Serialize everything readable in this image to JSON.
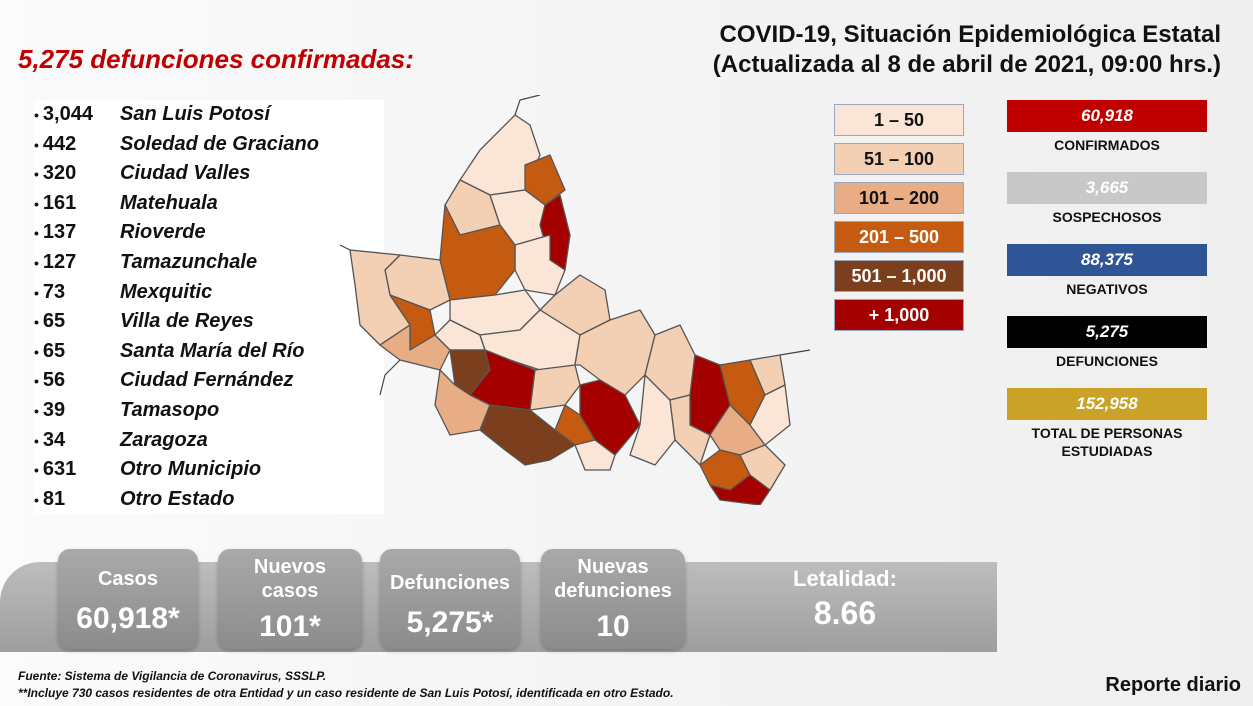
{
  "title": {
    "line1": "COVID-19, Situación Epidemiológica Estatal",
    "line2": "(Actualizada al 8 de abril de 2021, 09:00 hrs.)"
  },
  "deaths_headline": "5,275 defunciones confirmadas:",
  "municipalities": [
    {
      "count": "3,044",
      "name": "San Luis Potosí"
    },
    {
      "count": "442",
      "name": "Soledad de Graciano"
    },
    {
      "count": "320",
      "name": "Ciudad Valles"
    },
    {
      "count": "161",
      "name": "Matehuala"
    },
    {
      "count": "137",
      "name": "Rioverde"
    },
    {
      "count": "127",
      "name": "Tamazunchale"
    },
    {
      "count": "73",
      "name": "Mexquitic"
    },
    {
      "count": "65",
      "name": "Villa de Reyes"
    },
    {
      "count": "65",
      "name": "Santa María del Río"
    },
    {
      "count": "56",
      "name": "Ciudad Fernández"
    },
    {
      "count": "39",
      "name": "Tamasopo"
    },
    {
      "count": "34",
      "name": "Zaragoza"
    },
    {
      "count": "631",
      "name": "Otro Municipio"
    },
    {
      "count": "81",
      "name": "Otro Estado"
    }
  ],
  "legend": [
    {
      "label": "1 – 50",
      "color": "#fbe5d6",
      "text_color": "#111111"
    },
    {
      "label": "51 – 100",
      "color": "#f3cfb3",
      "text_color": "#111111"
    },
    {
      "label": "101 – 200",
      "color": "#e9ad86",
      "text_color": "#111111"
    },
    {
      "label": "201 – 500",
      "color": "#c55a11",
      "text_color": "#ffffff"
    },
    {
      "label": "501 – 1,000",
      "color": "#7b3f1d",
      "text_color": "#ffffff"
    },
    {
      "label": "+ 1,000",
      "color": "#a50000",
      "text_color": "#ffffff"
    }
  ],
  "stats": [
    {
      "value": "60,918",
      "label": "CONFIRMADOS",
      "color": "#c00000"
    },
    {
      "value": "3,665",
      "label": "SOSPECHOSOS",
      "color": "#c8c8c8"
    },
    {
      "value": "88,375",
      "label": "NEGATIVOS",
      "color": "#2f5597"
    },
    {
      "value": "5,275",
      "label": "DEFUNCIONES",
      "color": "#000000"
    },
    {
      "value": "152,958",
      "label": "TOTAL DE PERSONAS ESTUDIADAS",
      "color": "#c9a227"
    }
  ],
  "summary_cards": {
    "cases": {
      "label": "Casos",
      "value": "60,918*"
    },
    "new_cases": {
      "label": "Nuevos casos",
      "value": "101*"
    },
    "deaths": {
      "label": "Defunciones",
      "value": "5,275*"
    },
    "new_deaths": {
      "label": "Nuevas defunciones",
      "value": "10"
    },
    "lethality": {
      "label": "Letalidad:",
      "value": "8.66"
    }
  },
  "footer": {
    "source": "Fuente: Sistema de Vigilancia de Coronavirus, SSSLP.",
    "note": "**Incluye 730 casos residentes de otra Entidad y un caso residente de San Luis Potosí, identificada en otro Estado."
  },
  "daily_report": "Reporte diario"
}
